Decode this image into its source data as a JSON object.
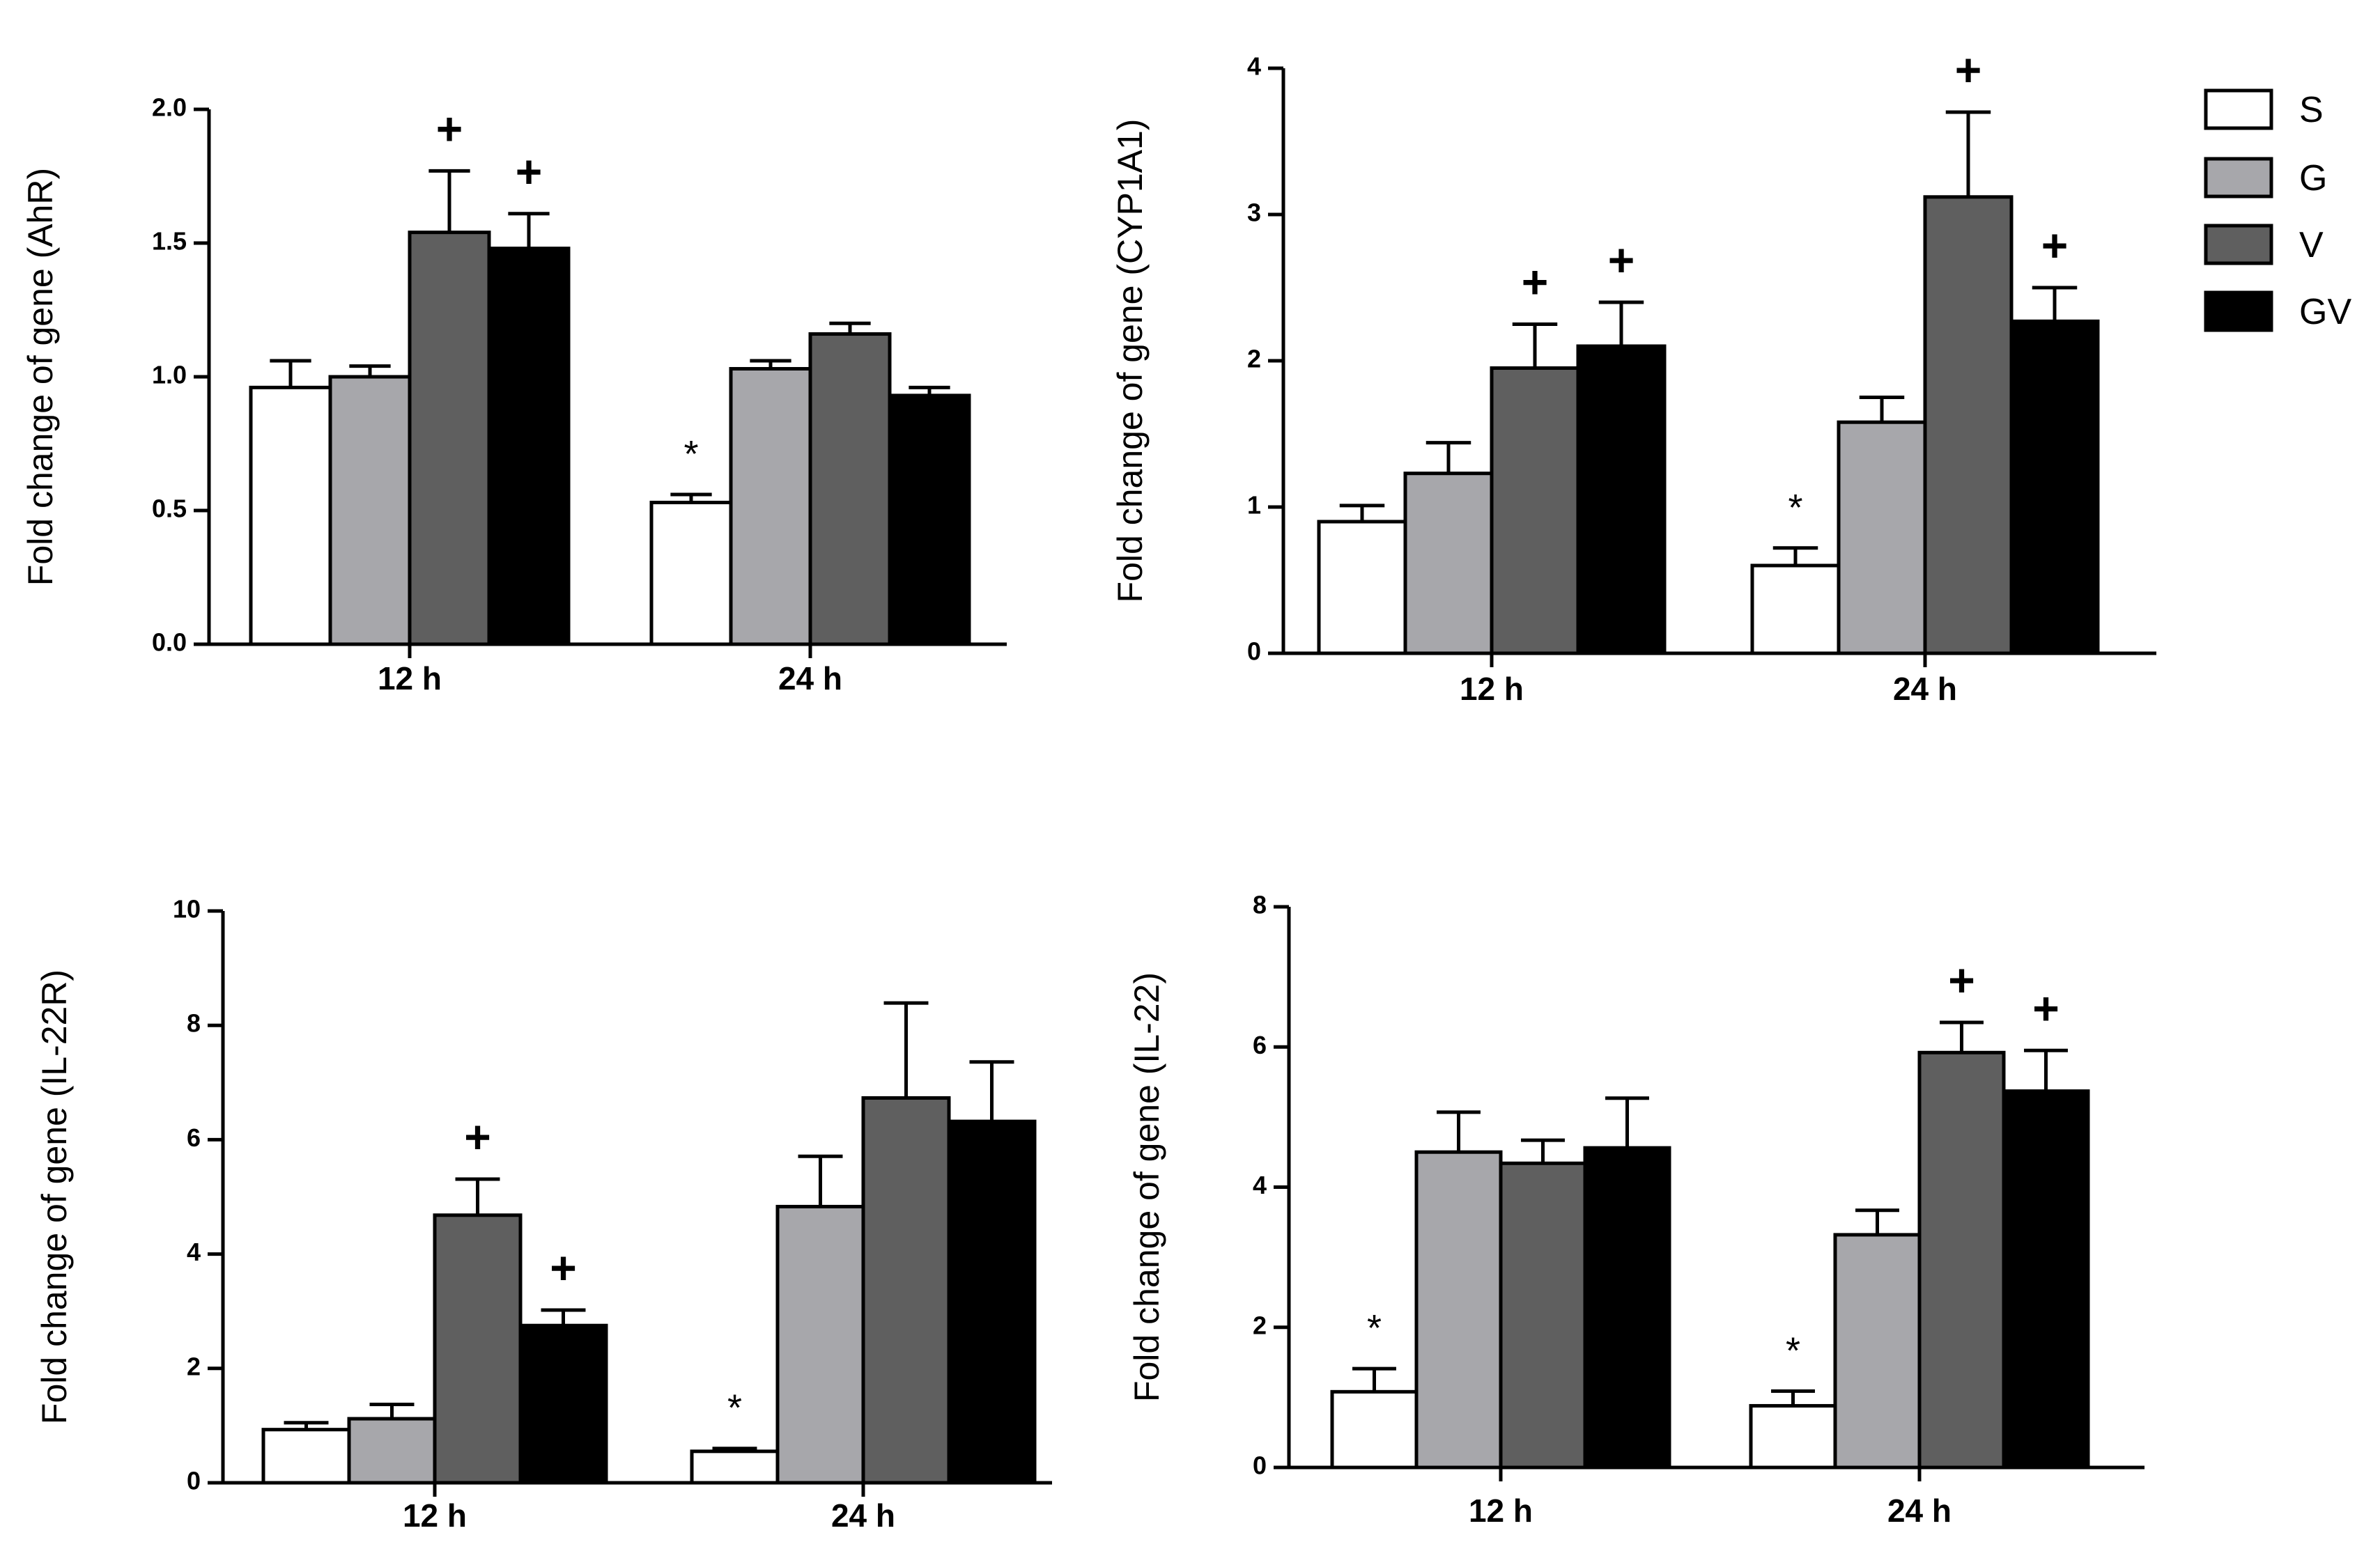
{
  "chart_data": [
    {
      "type": "bar",
      "ylabel": "Fold change of gene (AhR)",
      "categories": [
        "12 h",
        "24 h"
      ],
      "ylim": [
        0,
        2.0
      ],
      "yticks": [
        0.0,
        0.5,
        1.0,
        1.5,
        2.0
      ],
      "ytick_labels": [
        "0.0",
        "0.5",
        "1.0",
        "1.5",
        "2.0"
      ],
      "series": [
        {
          "name": "S",
          "values": [
            0.96,
            0.53
          ],
          "errors": [
            0.1,
            0.03
          ],
          "markers": [
            "",
            "*"
          ]
        },
        {
          "name": "G",
          "values": [
            1.0,
            1.03
          ],
          "errors": [
            0.04,
            0.03
          ],
          "markers": [
            "",
            ""
          ]
        },
        {
          "name": "V",
          "values": [
            1.54,
            1.16
          ],
          "errors": [
            0.23,
            0.04
          ],
          "markers": [
            "+",
            ""
          ]
        },
        {
          "name": "GV",
          "values": [
            1.48,
            0.93
          ],
          "errors": [
            0.13,
            0.03
          ],
          "markers": [
            "+",
            ""
          ]
        }
      ]
    },
    {
      "type": "bar",
      "ylabel": "Fold change of gene (CYP1A1)",
      "categories": [
        "12 h",
        "24 h"
      ],
      "ylim": [
        0,
        4
      ],
      "yticks": [
        0,
        1,
        2,
        3,
        4
      ],
      "ytick_labels": [
        "0",
        "1",
        "2",
        "3",
        "4"
      ],
      "series": [
        {
          "name": "S",
          "values": [
            0.9,
            0.6
          ],
          "errors": [
            0.11,
            0.12
          ],
          "markers": [
            "",
            "*"
          ]
        },
        {
          "name": "G",
          "values": [
            1.23,
            1.58
          ],
          "errors": [
            0.21,
            0.17
          ],
          "markers": [
            "",
            ""
          ]
        },
        {
          "name": "V",
          "values": [
            1.95,
            3.12
          ],
          "errors": [
            0.3,
            0.58
          ],
          "markers": [
            "+",
            "+"
          ]
        },
        {
          "name": "GV",
          "values": [
            2.1,
            2.27
          ],
          "errors": [
            0.3,
            0.23
          ],
          "markers": [
            "+",
            "+"
          ]
        }
      ]
    },
    {
      "type": "bar",
      "ylabel": "Fold change of gene (IL-22R)",
      "categories": [
        "12 h",
        "24 h"
      ],
      "ylim": [
        0,
        10
      ],
      "yticks": [
        0,
        2,
        4,
        6,
        8,
        10
      ],
      "ytick_labels": [
        "0",
        "2",
        "4",
        "6",
        "8",
        "10"
      ],
      "series": [
        {
          "name": "S",
          "values": [
            0.93,
            0.55
          ],
          "errors": [
            0.12,
            0.05
          ],
          "markers": [
            "",
            "*"
          ]
        },
        {
          "name": "G",
          "values": [
            1.12,
            4.83
          ],
          "errors": [
            0.25,
            0.88
          ],
          "markers": [
            "",
            ""
          ]
        },
        {
          "name": "V",
          "values": [
            4.68,
            6.73
          ],
          "errors": [
            0.63,
            1.66
          ],
          "markers": [
            "+",
            ""
          ]
        },
        {
          "name": "GV",
          "values": [
            2.75,
            6.32
          ],
          "errors": [
            0.27,
            1.04
          ],
          "markers": [
            "+",
            ""
          ]
        }
      ]
    },
    {
      "type": "bar",
      "ylabel": "Fold change of gene (IL-22)",
      "categories": [
        "12 h",
        "24 h"
      ],
      "ylim": [
        0,
        8
      ],
      "yticks": [
        0,
        2,
        4,
        6,
        8
      ],
      "ytick_labels": [
        "0",
        "2",
        "4",
        "6",
        "8"
      ],
      "series": [
        {
          "name": "S",
          "values": [
            1.08,
            0.88
          ],
          "errors": [
            0.33,
            0.21
          ],
          "markers": [
            "*",
            "*"
          ]
        },
        {
          "name": "G",
          "values": [
            4.5,
            3.32
          ],
          "errors": [
            0.57,
            0.35
          ],
          "markers": [
            "",
            ""
          ]
        },
        {
          "name": "V",
          "values": [
            4.34,
            5.92
          ],
          "errors": [
            0.33,
            0.43
          ],
          "markers": [
            "",
            "+"
          ]
        },
        {
          "name": "GV",
          "values": [
            4.56,
            5.37
          ],
          "errors": [
            0.71,
            0.58
          ],
          "markers": [
            "",
            "+"
          ]
        }
      ]
    }
  ],
  "legend": [
    {
      "name": "S",
      "color": "#ffffff"
    },
    {
      "name": "G",
      "color": "#a7a7ab"
    },
    {
      "name": "V",
      "color": "#5f5f5f"
    },
    {
      "name": "GV",
      "color": "#000000"
    }
  ],
  "colors": {
    "axis": "#000000",
    "S": "#ffffff",
    "G": "#a7a7ab",
    "V": "#5f5f5f",
    "GV": "#000000"
  }
}
